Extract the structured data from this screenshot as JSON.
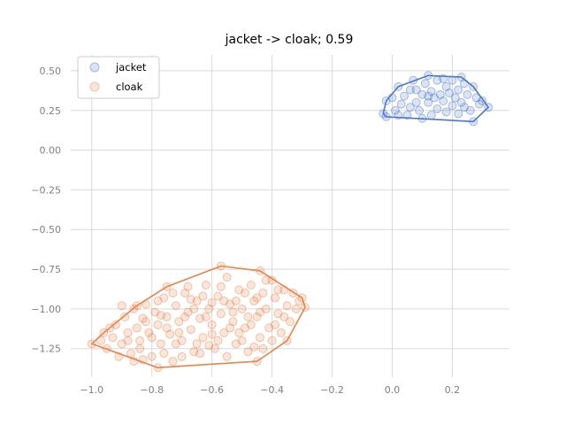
{
  "chart_data": {
    "type": "scatter",
    "title": "jacket -> cloak; 0.59",
    "xlabel": "",
    "ylabel": "",
    "xlim": [
      -1.07,
      0.39
    ],
    "ylim": [
      -1.43,
      0.6
    ],
    "x_ticks": [
      -1.0,
      -0.8,
      -0.6,
      -0.4,
      -0.2,
      0.0,
      0.2
    ],
    "x_tick_labels": [
      "−1.0",
      "−0.8",
      "−0.6",
      "−0.4",
      "−0.2",
      "0.0",
      "0.2"
    ],
    "y_ticks": [
      0.5,
      0.25,
      0.0,
      -0.25,
      -0.5,
      -0.75,
      -1.0,
      -1.25
    ],
    "y_tick_labels": [
      "0.50",
      "0.25",
      "0.00",
      "−0.25",
      "−0.50",
      "−0.75",
      "−1.00",
      "−1.25"
    ],
    "grid": true,
    "legend_position": "top-left",
    "series": [
      {
        "name": "jacket",
        "color": "#4c78c9",
        "hull": [
          [
            -0.03,
            0.23
          ],
          [
            -0.02,
            0.31
          ],
          [
            0.02,
            0.4
          ],
          [
            0.12,
            0.47
          ],
          [
            0.23,
            0.46
          ],
          [
            0.27,
            0.4
          ],
          [
            0.32,
            0.27
          ],
          [
            0.27,
            0.18
          ],
          [
            -0.02,
            0.21
          ]
        ],
        "points": [
          [
            -0.03,
            0.23
          ],
          [
            -0.02,
            0.31
          ],
          [
            0.02,
            0.4
          ],
          [
            0.12,
            0.47
          ],
          [
            0.23,
            0.46
          ],
          [
            0.27,
            0.4
          ],
          [
            0.32,
            0.27
          ],
          [
            0.27,
            0.18
          ],
          [
            -0.02,
            0.21
          ],
          [
            0.0,
            0.33
          ],
          [
            0.01,
            0.25
          ],
          [
            0.03,
            0.29
          ],
          [
            0.05,
            0.22
          ],
          [
            0.06,
            0.38
          ],
          [
            0.08,
            0.3
          ],
          [
            0.09,
            0.25
          ],
          [
            0.1,
            0.35
          ],
          [
            0.11,
            0.42
          ],
          [
            0.12,
            0.3
          ],
          [
            0.13,
            0.37
          ],
          [
            0.14,
            0.33
          ],
          [
            0.15,
            0.44
          ],
          [
            0.15,
            0.26
          ],
          [
            0.16,
            0.35
          ],
          [
            0.17,
            0.31
          ],
          [
            0.18,
            0.4
          ],
          [
            0.19,
            0.36
          ],
          [
            0.2,
            0.44
          ],
          [
            0.2,
            0.28
          ],
          [
            0.21,
            0.33
          ],
          [
            0.22,
            0.38
          ],
          [
            0.22,
            0.23
          ],
          [
            0.23,
            0.3
          ],
          [
            0.24,
            0.42
          ],
          [
            0.25,
            0.35
          ],
          [
            0.26,
            0.25
          ],
          [
            0.28,
            0.33
          ],
          [
            0.29,
            0.29
          ],
          [
            0.3,
            0.31
          ],
          [
            0.07,
            0.44
          ],
          [
            0.04,
            0.34
          ],
          [
            0.1,
            0.2
          ],
          [
            0.13,
            0.22
          ],
          [
            0.17,
            0.45
          ],
          [
            0.08,
            0.38
          ],
          [
            0.02,
            0.22
          ],
          [
            0.12,
            0.34
          ],
          [
            0.18,
            0.24
          ],
          [
            0.24,
            0.27
          ],
          [
            0.06,
            0.27
          ]
        ]
      },
      {
        "name": "cloak",
        "color": "#e8834a",
        "hull": [
          [
            -1.0,
            -1.22
          ],
          [
            -0.96,
            -1.15
          ],
          [
            -0.85,
            -0.98
          ],
          [
            -0.75,
            -0.86
          ],
          [
            -0.57,
            -0.73
          ],
          [
            -0.44,
            -0.76
          ],
          [
            -0.3,
            -0.93
          ],
          [
            -0.29,
            -0.99
          ],
          [
            -0.35,
            -1.2
          ],
          [
            -0.45,
            -1.33
          ],
          [
            -0.78,
            -1.37
          ],
          [
            -1.0,
            -1.22
          ]
        ],
        "points": [
          [
            -1.0,
            -1.22
          ],
          [
            -0.96,
            -1.15
          ],
          [
            -0.85,
            -0.98
          ],
          [
            -0.75,
            -0.86
          ],
          [
            -0.57,
            -0.73
          ],
          [
            -0.44,
            -0.76
          ],
          [
            -0.3,
            -0.93
          ],
          [
            -0.29,
            -0.99
          ],
          [
            -0.35,
            -1.2
          ],
          [
            -0.45,
            -1.33
          ],
          [
            -0.78,
            -1.37
          ],
          [
            -0.97,
            -1.2
          ],
          [
            -0.95,
            -1.25
          ],
          [
            -0.93,
            -1.18
          ],
          [
            -0.92,
            -1.1
          ],
          [
            -0.9,
            -1.22
          ],
          [
            -0.89,
            -1.05
          ],
          [
            -0.88,
            -1.15
          ],
          [
            -0.87,
            -1.28
          ],
          [
            -0.86,
            -1.0
          ],
          [
            -0.85,
            -1.12
          ],
          [
            -0.84,
            -1.2
          ],
          [
            -0.83,
            -1.06
          ],
          [
            -0.82,
            -0.97
          ],
          [
            -0.81,
            -1.15
          ],
          [
            -0.8,
            -1.3
          ],
          [
            -0.79,
            -1.02
          ],
          [
            -0.78,
            -1.1
          ],
          [
            -0.77,
            -1.22
          ],
          [
            -0.76,
            -0.93
          ],
          [
            -0.75,
            -1.05
          ],
          [
            -0.74,
            -1.16
          ],
          [
            -0.73,
            -1.33
          ],
          [
            -0.72,
            -0.98
          ],
          [
            -0.71,
            -1.08
          ],
          [
            -0.7,
            -1.2
          ],
          [
            -0.69,
            -0.9
          ],
          [
            -0.68,
            -1.02
          ],
          [
            -0.67,
            -1.13
          ],
          [
            -0.66,
            -1.27
          ],
          [
            -0.65,
            -0.95
          ],
          [
            -0.64,
            -1.06
          ],
          [
            -0.63,
            -1.18
          ],
          [
            -0.62,
            -0.85
          ],
          [
            -0.61,
            -1.0
          ],
          [
            -0.6,
            -1.1
          ],
          [
            -0.59,
            -1.25
          ],
          [
            -0.58,
            -0.92
          ],
          [
            -0.57,
            -1.03
          ],
          [
            -0.56,
            -1.15
          ],
          [
            -0.55,
            -0.8
          ],
          [
            -0.54,
            -0.97
          ],
          [
            -0.53,
            -1.08
          ],
          [
            -0.52,
            -1.22
          ],
          [
            -0.51,
            -0.88
          ],
          [
            -0.5,
            -1.0
          ],
          [
            -0.49,
            -1.12
          ],
          [
            -0.48,
            -1.27
          ],
          [
            -0.47,
            -0.85
          ],
          [
            -0.46,
            -0.95
          ],
          [
            -0.45,
            -1.05
          ],
          [
            -0.44,
            -1.18
          ],
          [
            -0.43,
            -0.9
          ],
          [
            -0.42,
            -1.0
          ],
          [
            -0.41,
            -1.12
          ],
          [
            -0.4,
            -0.82
          ],
          [
            -0.39,
            -0.93
          ],
          [
            -0.38,
            -1.03
          ],
          [
            -0.37,
            -1.15
          ],
          [
            -0.36,
            -0.88
          ],
          [
            -0.35,
            -0.98
          ],
          [
            -0.34,
            -1.08
          ],
          [
            -0.33,
            -0.9
          ],
          [
            -0.32,
            -1.0
          ],
          [
            -0.31,
            -0.95
          ],
          [
            -0.91,
            -1.3
          ],
          [
            -0.86,
            -1.33
          ],
          [
            -0.8,
            -1.18
          ],
          [
            -0.76,
            -1.28
          ],
          [
            -0.7,
            -1.3
          ],
          [
            -0.65,
            -1.22
          ],
          [
            -0.6,
            -0.96
          ],
          [
            -0.55,
            -1.3
          ],
          [
            -0.5,
            -1.2
          ],
          [
            -0.73,
            -0.9
          ],
          [
            -0.68,
            -0.86
          ],
          [
            -0.62,
            -1.05
          ],
          [
            -0.57,
            -0.86
          ],
          [
            -0.52,
            -0.95
          ],
          [
            -0.47,
            -1.1
          ],
          [
            -0.42,
            -0.82
          ],
          [
            -0.84,
            -1.25
          ],
          [
            -0.78,
            -0.95
          ],
          [
            -0.66,
            -1.0
          ],
          [
            -0.6,
            -1.16
          ],
          [
            -0.53,
            -1.02
          ],
          [
            -0.46,
            -1.24
          ],
          [
            -0.38,
            -0.88
          ],
          [
            -0.94,
            -1.12
          ],
          [
            -0.88,
            -1.2
          ],
          [
            -0.71,
            -1.15
          ],
          [
            -0.63,
            -0.92
          ],
          [
            -0.58,
            -1.2
          ],
          [
            -0.49,
            -0.9
          ],
          [
            -0.44,
            -1.02
          ],
          [
            -0.4,
            -1.2
          ],
          [
            -0.82,
            -1.08
          ],
          [
            -0.75,
            -1.12
          ],
          [
            -0.69,
            -1.05
          ],
          [
            -0.64,
            -1.28
          ],
          [
            -0.56,
            -0.95
          ],
          [
            -0.51,
            -1.15
          ],
          [
            -0.45,
            -0.93
          ],
          [
            -0.36,
            -1.05
          ],
          [
            -0.9,
            -0.98
          ],
          [
            -0.83,
            -1.32
          ],
          [
            -0.77,
            -1.04
          ],
          [
            -0.72,
            -1.22
          ],
          [
            -0.67,
            -0.94
          ],
          [
            -0.61,
            -1.23
          ],
          [
            -0.54,
            -1.12
          ],
          [
            -0.48,
            -1.05
          ],
          [
            -0.43,
            -1.25
          ],
          [
            -0.39,
            -1.1
          ]
        ]
      }
    ]
  }
}
